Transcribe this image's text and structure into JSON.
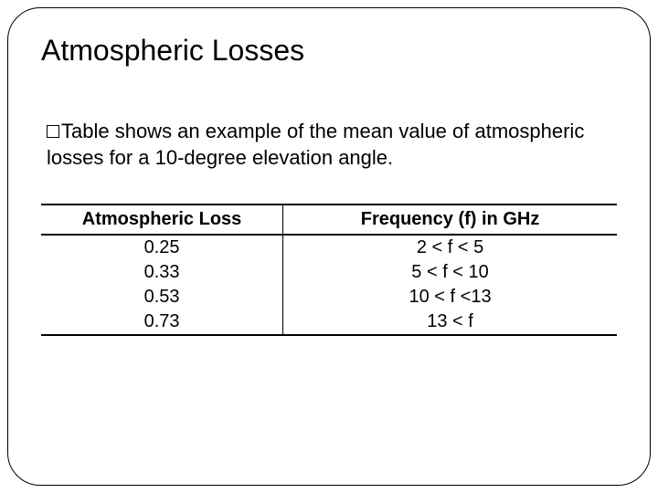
{
  "title": "Atmospheric Losses",
  "body_text_prefix": "Table shows an example of the mean value of atmospheric losses for a 10-degree elevation angle.",
  "table": {
    "columns": [
      "Atmospheric Loss",
      "Frequency (f) in GHz"
    ],
    "rows": [
      [
        "0.25",
        "2 < f < 5"
      ],
      [
        "0.33",
        "5 < f < 10"
      ],
      [
        "0.53",
        "10 < f <13"
      ],
      [
        "0.73",
        "13 < f"
      ]
    ],
    "header_fontweight": 700,
    "border_color": "#000000",
    "header_border_width": 2,
    "col_divider_width": 1,
    "font_size": 20,
    "text_color": "#000000",
    "background_color": "#ffffff",
    "col_widths_pct": [
      42,
      58
    ],
    "text_align": "center"
  },
  "styling": {
    "slide_background": "#ffffff",
    "frame_border_color": "#000000",
    "frame_border_radius": 36,
    "title_fontsize": 32,
    "body_fontsize": 22,
    "bullet_style": "hollow-square"
  }
}
